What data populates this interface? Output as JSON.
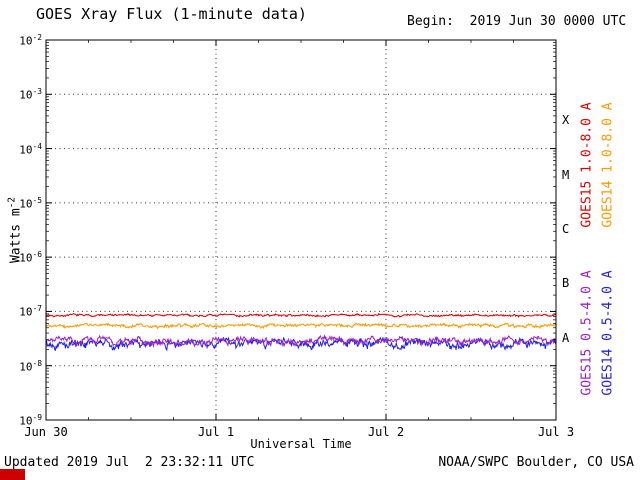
{
  "figure": {
    "title": "GOES Xray Flux (1-minute data)",
    "begin_label": "Begin:  2019 Jun 30 0000 UTC",
    "updated": "Updated 2019 Jul  2 23:32:11 UTC",
    "credit": "NOAA/SWPC Boulder, CO USA",
    "corner_mark_color": "#cc0000"
  },
  "chart_data": {
    "type": "line",
    "title": "GOES Xray Flux (1-minute data)",
    "begin_time": "2019 Jun 30 0000 UTC",
    "x_axis": {
      "label": "Universal Time",
      "tick_labels": [
        "Jun 30",
        "Jul 1",
        "Jul 2",
        "Jul 3"
      ],
      "span_days": 3,
      "minor_tick_hours": 6
    },
    "y_axis": {
      "label": "Watts m^-2",
      "scale": "log",
      "min_exp": -9,
      "max_exp": -2,
      "tick_exponents": [
        -2,
        -3,
        -4,
        -5,
        -6,
        -7,
        -8,
        -9
      ]
    },
    "grid": {
      "h_gridline_exps": [
        -3,
        -4,
        -5,
        -6,
        -7,
        -8
      ],
      "v_gridline_days": [
        1,
        2
      ],
      "style": "dotted"
    },
    "flare_classes": [
      {
        "label": "X",
        "mid_exp": -3.5
      },
      {
        "label": "M",
        "mid_exp": -4.5
      },
      {
        "label": "C",
        "mid_exp": -5.5
      },
      {
        "label": "B",
        "mid_exp": -6.5
      },
      {
        "label": "A",
        "mid_exp": -7.5
      }
    ],
    "series": [
      {
        "name": "GOES15 1.0-8.0 A",
        "color": "#dd0000",
        "baseline": 8.5e-08,
        "noise": 0.05,
        "seed": 7,
        "description": "nearly flat line just below 1e-7 W/m2 for all 3 days"
      },
      {
        "name": "GOES14 1.0-8.0 A",
        "color": "#ff9900",
        "baseline": 5.5e-08,
        "noise": 0.08,
        "seed": 21,
        "description": "nearly flat noisy line near 5.5e-8 W/m2"
      },
      {
        "name": "GOES15 0.5-4.0 A",
        "color": "#9922cc",
        "baseline": 2.9e-08,
        "noise": 0.15,
        "seed": 93,
        "description": "noisy band near 2.9e-8 W/m2, overlapping blue trace"
      },
      {
        "name": "GOES14 0.5-4.0 A",
        "color": "#2222dd",
        "baseline": 2.6e-08,
        "noise": 0.18,
        "seed": 55,
        "description": "noisy band near 2.6e-8 W/m2"
      }
    ]
  }
}
